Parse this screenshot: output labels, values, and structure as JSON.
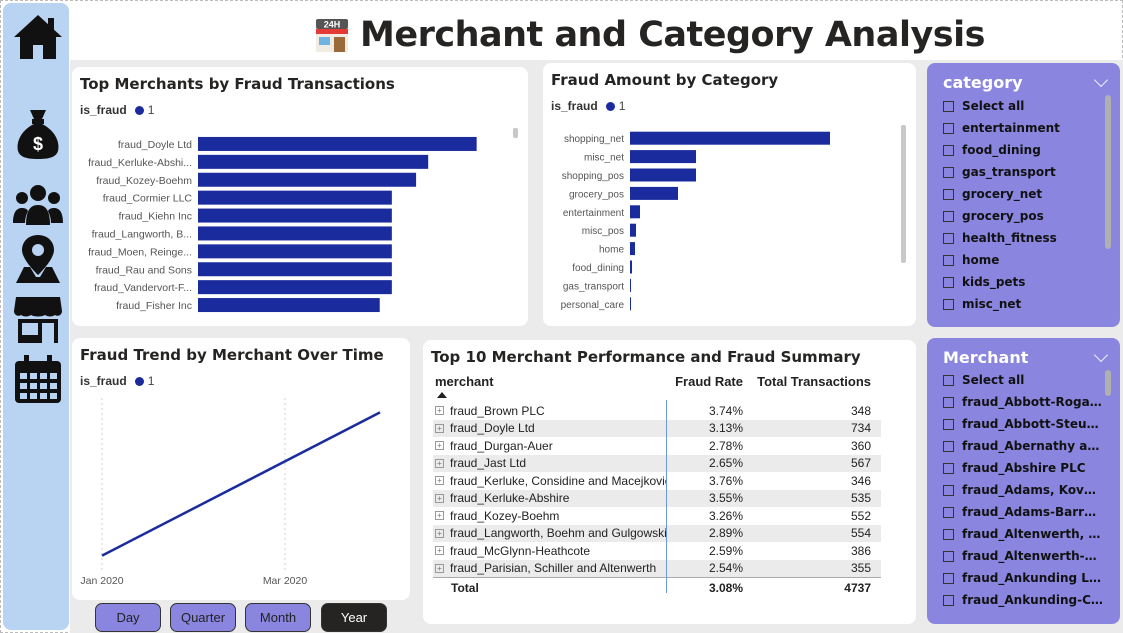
{
  "page": {
    "title": "Merchant and Category Analysis"
  },
  "nav": {
    "items": [
      "home",
      "revenue",
      "customers",
      "location",
      "merchant",
      "calendar"
    ]
  },
  "top_merchants": {
    "title": "Top Merchants by Fraud Transactions",
    "legend_field": "is_fraud",
    "legend_value": "1"
  },
  "fraud_by_category": {
    "title": "Fraud Amount by Category",
    "legend_field": "is_fraud",
    "legend_value": "1"
  },
  "trend": {
    "title": "Fraud Trend by Merchant Over Time",
    "legend_field": "is_fraud",
    "legend_value": "1"
  },
  "summary_table": {
    "title": "Top 10 Merchant Performance and Fraud Summary",
    "columns": [
      "merchant",
      "Fraud Rate",
      "Total Transactions"
    ],
    "rows": [
      {
        "merchant": "fraud_Brown PLC",
        "rate": "3.74%",
        "total": "348"
      },
      {
        "merchant": "fraud_Doyle Ltd",
        "rate": "3.13%",
        "total": "734"
      },
      {
        "merchant": "fraud_Durgan-Auer",
        "rate": "2.78%",
        "total": "360"
      },
      {
        "merchant": "fraud_Jast Ltd",
        "rate": "2.65%",
        "total": "567"
      },
      {
        "merchant": "fraud_Kerluke, Considine and Macejkovic",
        "rate": "3.76%",
        "total": "346"
      },
      {
        "merchant": "fraud_Kerluke-Abshire",
        "rate": "3.55%",
        "total": "535"
      },
      {
        "merchant": "fraud_Kozey-Boehm",
        "rate": "3.26%",
        "total": "552"
      },
      {
        "merchant": "fraud_Langworth, Boehm and Gulgowski",
        "rate": "2.89%",
        "total": "554"
      },
      {
        "merchant": "fraud_McGlynn-Heathcote",
        "rate": "2.59%",
        "total": "386"
      },
      {
        "merchant": "fraud_Parisian, Schiller and Altenwerth",
        "rate": "2.54%",
        "total": "355"
      }
    ],
    "total_label": "Total",
    "total_rate": "3.08%",
    "total_count": "4737"
  },
  "period_buttons": [
    "Day",
    "Quarter",
    "Month",
    "Year"
  ],
  "period_active": "Year",
  "category_slicer": {
    "title": "category",
    "items": [
      "Select all",
      "entertainment",
      "food_dining",
      "gas_transport",
      "grocery_net",
      "grocery_pos",
      "health_fitness",
      "home",
      "kids_pets",
      "misc_net"
    ]
  },
  "merchant_slicer": {
    "title": "Merchant",
    "items": [
      "Select all",
      "fraud_Abbott-Rogahn",
      "fraud_Abbott-Steuber",
      "fraud_Abernathy and Sons",
      "fraud_Abshire PLC",
      "fraud_Adams, Kovacek an...",
      "fraud_Adams-Barrows",
      "fraud_Altenwerth, Cartwr...",
      "fraud_Altenwerth-Kilback",
      "fraud_Ankunding LLC",
      "fraud_Ankunding-Carroll"
    ]
  },
  "colors": {
    "bar": "#1a2b9e",
    "slicer": "#8a86e0",
    "sidebar": "#b9d3f2",
    "active_button": "#252423"
  },
  "chart_data": [
    {
      "type": "bar",
      "orientation": "horizontal",
      "title": "Top Merchants by Fraud Transactions",
      "legend": "is_fraud 1",
      "categories": [
        "fraud_Doyle Ltd",
        "fraud_Kerluke-Abshi...",
        "fraud_Kozey-Boehm",
        "fraud_Cormier LLC",
        "fraud_Kiehn Inc",
        "fraud_Langworth, B...",
        "fraud_Moen, Reinge...",
        "fraud_Rau and Sons",
        "fraud_Vandervort-F...",
        "fraud_Fisher Inc"
      ],
      "values": [
        23,
        19,
        18,
        16,
        16,
        16,
        16,
        16,
        16,
        15
      ],
      "xlim": [
        0,
        26
      ]
    },
    {
      "type": "bar",
      "orientation": "horizontal",
      "title": "Fraud Amount by Category",
      "legend": "is_fraud 1",
      "categories": [
        "shopping_net",
        "misc_net",
        "shopping_pos",
        "grocery_pos",
        "entertainment",
        "misc_pos",
        "home",
        "food_dining",
        "gas_transport",
        "personal_care"
      ],
      "values": [
        100,
        33,
        33,
        24,
        5,
        3,
        2.5,
        1,
        0.5,
        0.3
      ],
      "xlim": [
        0,
        120
      ]
    },
    {
      "type": "line",
      "title": "Fraud Trend by Merchant Over Time",
      "legend": "is_fraud 1",
      "x": [
        "Jan 2020",
        "Mar 2020"
      ],
      "x_ticks": [
        "Jan 2020",
        "Mar 2020"
      ],
      "y": [
        1,
        11
      ],
      "ylim": [
        0,
        12
      ],
      "grid": "vertical dotted"
    }
  ]
}
